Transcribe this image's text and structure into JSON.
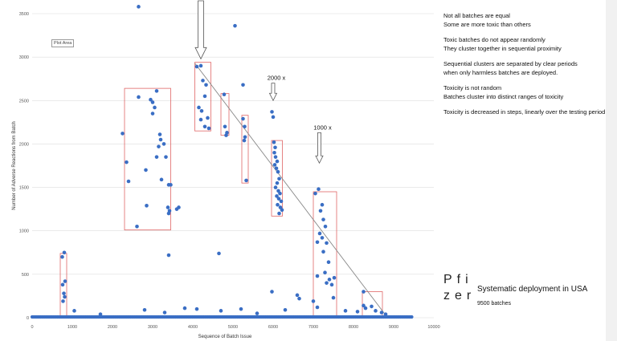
{
  "chart_data": {
    "type": "scatter",
    "xlabel": "Sequence of Batch Issue",
    "ylabel": "Number of Adverse Reactions from Batch",
    "xlim": [
      0,
      10000
    ],
    "ylim": [
      0,
      3500
    ],
    "x_ticks": [
      "0",
      "1000",
      "2000",
      "3000",
      "4000",
      "5000",
      "6000",
      "7000",
      "8000",
      "9000",
      "10000"
    ],
    "y_ticks": [
      "0",
      "500",
      "1000",
      "1500",
      "2000",
      "2500",
      "3000",
      "3500"
    ],
    "grid": "horizontal",
    "point_color": "#3a6ec4",
    "points": [
      [
        2650,
        3580
      ],
      [
        5050,
        3360
      ],
      [
        4100,
        2890
      ],
      [
        4200,
        2900
      ],
      [
        4250,
        2730
      ],
      [
        4330,
        2680
      ],
      [
        4300,
        2550
      ],
      [
        4150,
        2420
      ],
      [
        4220,
        2380
      ],
      [
        4370,
        2300
      ],
      [
        4200,
        2280
      ],
      [
        4300,
        2200
      ],
      [
        4400,
        2180
      ],
      [
        4780,
        2570
      ],
      [
        4800,
        2200
      ],
      [
        4850,
        2130
      ],
      [
        4830,
        2100
      ],
      [
        5250,
        2680
      ],
      [
        5250,
        2290
      ],
      [
        5290,
        2200
      ],
      [
        5300,
        2080
      ],
      [
        5280,
        2040
      ],
      [
        5330,
        1580
      ],
      [
        5970,
        2370
      ],
      [
        6000,
        2310
      ],
      [
        6020,
        2020
      ],
      [
        6050,
        1960
      ],
      [
        6030,
        1900
      ],
      [
        6060,
        1850
      ],
      [
        6100,
        1800
      ],
      [
        6040,
        1760
      ],
      [
        6080,
        1720
      ],
      [
        6120,
        1680
      ],
      [
        6150,
        1600
      ],
      [
        6100,
        1550
      ],
      [
        6060,
        1500
      ],
      [
        6130,
        1460
      ],
      [
        6170,
        1430
      ],
      [
        6090,
        1400
      ],
      [
        6140,
        1370
      ],
      [
        6200,
        1340
      ],
      [
        6110,
        1300
      ],
      [
        6180,
        1270
      ],
      [
        6220,
        1240
      ],
      [
        6150,
        1200
      ],
      [
        2250,
        2120
      ],
      [
        2350,
        1790
      ],
      [
        2400,
        1570
      ],
      [
        2650,
        2540
      ],
      [
        2950,
        2510
      ],
      [
        3000,
        2480
      ],
      [
        3050,
        2420
      ],
      [
        3100,
        2610
      ],
      [
        3000,
        2350
      ],
      [
        3180,
        2110
      ],
      [
        3200,
        2050
      ],
      [
        3150,
        1970
      ],
      [
        3280,
        2000
      ],
      [
        3330,
        1850
      ],
      [
        3100,
        1850
      ],
      [
        2830,
        1700
      ],
      [
        3220,
        1590
      ],
      [
        3400,
        1530
      ],
      [
        3450,
        1530
      ],
      [
        3380,
        1270
      ],
      [
        3420,
        1230
      ],
      [
        3400,
        1200
      ],
      [
        3600,
        1250
      ],
      [
        3650,
        1270
      ],
      [
        2850,
        1290
      ],
      [
        2610,
        1050
      ],
      [
        3400,
        720
      ],
      [
        7050,
        1430
      ],
      [
        7130,
        1480
      ],
      [
        7220,
        1300
      ],
      [
        7180,
        1230
      ],
      [
        7250,
        1130
      ],
      [
        7300,
        1050
      ],
      [
        7160,
        970
      ],
      [
        7220,
        920
      ],
      [
        7330,
        860
      ],
      [
        7100,
        870
      ],
      [
        7250,
        760
      ],
      [
        7380,
        640
      ],
      [
        7290,
        520
      ],
      [
        7100,
        480
      ],
      [
        7400,
        440
      ],
      [
        7330,
        400
      ],
      [
        7460,
        380
      ],
      [
        7520,
        460
      ],
      [
        7000,
        190
      ],
      [
        7100,
        120
      ],
      [
        7500,
        230
      ],
      [
        750,
        700
      ],
      [
        800,
        750
      ],
      [
        820,
        420
      ],
      [
        760,
        380
      ],
      [
        790,
        280
      ],
      [
        810,
        240
      ],
      [
        770,
        190
      ],
      [
        8250,
        300
      ],
      [
        8250,
        140
      ],
      [
        8300,
        110
      ],
      [
        8450,
        130
      ],
      [
        8550,
        80
      ],
      [
        8700,
        60
      ],
      [
        8800,
        40
      ],
      [
        4650,
        740
      ],
      [
        5970,
        300
      ],
      [
        6600,
        260
      ],
      [
        6650,
        220
      ],
      [
        1050,
        80
      ],
      [
        2800,
        90
      ],
      [
        3800,
        110
      ],
      [
        4100,
        100
      ],
      [
        4700,
        80
      ],
      [
        5200,
        100
      ],
      [
        6300,
        90
      ],
      [
        7800,
        80
      ],
      [
        8100,
        70
      ],
      [
        1700,
        40
      ],
      [
        3300,
        60
      ],
      [
        5600,
        50
      ]
    ],
    "baseline_band": {
      "x_start": 0,
      "x_end": 9450,
      "y": 0
    },
    "trend_line": [
      [
        4050,
        2930
      ],
      [
        8850,
        0
      ]
    ],
    "cluster_boxes": [
      [
        700,
        0,
        860,
        740
      ],
      [
        2300,
        1010,
        3450,
        2640
      ],
      [
        4050,
        2150,
        4450,
        2940
      ],
      [
        4700,
        2100,
        4900,
        2580
      ],
      [
        5220,
        1550,
        5380,
        2330
      ],
      [
        5960,
        1170,
        6230,
        2040
      ],
      [
        7000,
        0,
        7580,
        1450
      ],
      [
        8220,
        0,
        8720,
        300
      ]
    ],
    "arrows": [
      {
        "x": 4200,
        "y_from": 3800,
        "y_to": 2980,
        "label": ""
      },
      {
        "x": 6000,
        "y_from": 2700,
        "y_to": 2500,
        "label": "2000 x"
      },
      {
        "x": 7150,
        "y_from": 2130,
        "y_to": 1780,
        "label": "1000 x"
      }
    ],
    "plot_area_label": "Plot Area"
  },
  "notes": [
    "Not all batches are equal",
    "Some are more toxic than others",
    "",
    "Toxic batches do not appear randomly",
    "They cluster together in sequential proximity",
    "",
    "Sequential clusters are separated by clear periods",
    "when only harmless batches are deployed.",
    "",
    "Toxicity is not random",
    "Batches cluster into distinct ranges of toxicity",
    "",
    "Toxicity is decreased in steps, linearly over the testing period"
  ],
  "brand": {
    "line1": "Pfi",
    "line2": "zer"
  },
  "deployment": {
    "title": "Systematic deployment in USA",
    "subtitle": "9500 batches"
  },
  "colors": {
    "points": "#3a6ec4",
    "boxes": "#e06666",
    "grid": "#dddddd",
    "trend": "#888888"
  }
}
